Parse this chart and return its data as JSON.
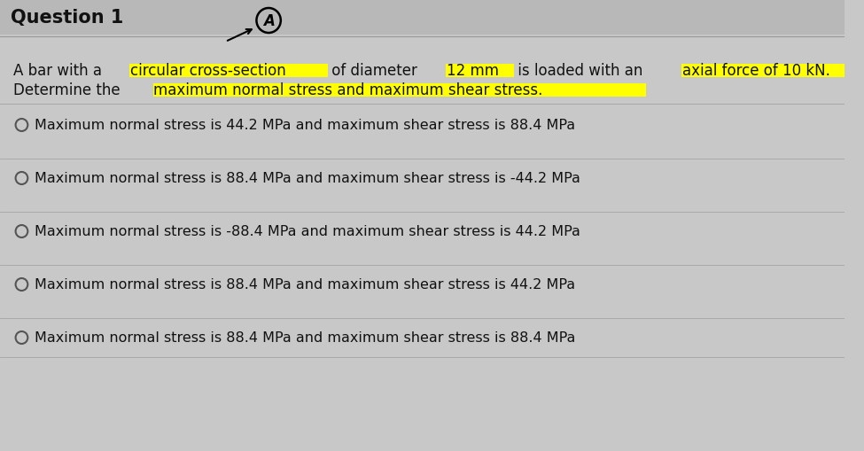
{
  "title": "Question 1",
  "bg_color": "#c8c8c8",
  "title_bar_color": "#b0b0b0",
  "question_text_line1": "A bar with a ",
  "highlight1": "circular cross-section",
  "q_text_line1b": " of diameter ",
  "highlight2": "12 mm",
  "q_text_line1c": " is loaded with an ",
  "highlight3": "axial force of 10 kN.",
  "question_text_line2_pre": "Determine the ",
  "highlight4": "maximum normal stress and maximum shear stress.",
  "options": [
    "Maximum normal stress is 44.2 MPa and maximum shear stress is 88.4 MPa",
    "Maximum normal stress is 88.4 MPa and maximum shear stress is -44.2 MPa",
    "Maximum normal stress is -88.4 MPa and maximum shear stress is 44.2 MPa",
    "Maximum normal stress is 88.4 MPa and maximum shear stress is 44.2 MPa",
    "Maximum normal stress is 88.4 MPa and maximum shear stress is 88.4 MPa"
  ],
  "highlight_color": "#ffff00",
  "text_color": "#111111",
  "option_divider_color": "#aaaaaa",
  "font_size_title": 15,
  "font_size_question": 12,
  "font_size_options": 11.5
}
